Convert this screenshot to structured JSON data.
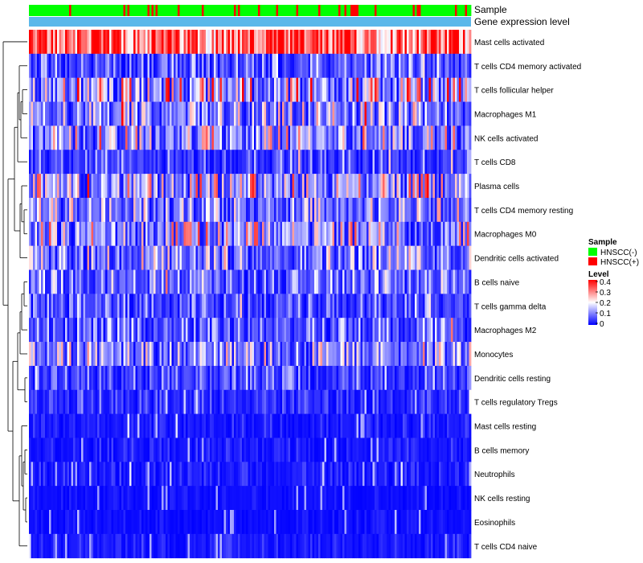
{
  "chart_data": {
    "type": "heatmap",
    "title": "",
    "annotation_tracks": [
      {
        "name": "Sample",
        "kind": "categorical"
      },
      {
        "name": "Gene expression level",
        "kind": "constant",
        "color": "#5bb8ea"
      }
    ],
    "rows": [
      "Mast cells activated",
      "T cells CD4 memory activated",
      "T cells follicular helper",
      "Macrophages M1",
      "NK cells activated",
      "T cells CD8",
      "Plasma cells",
      "T cells CD4 memory resting",
      "Macrophages M0",
      "Dendritic cells activated",
      "B cells naive",
      "T cells gamma delta",
      "Macrophages M2",
      "Monocytes",
      "Dendritic cells resting",
      "T cells regulatory  Tregs",
      "Mast cells resting",
      "B cells memory",
      "Neutrophils",
      "NK cells resting",
      "Eosinophils",
      "T cells CD4 naive"
    ],
    "row_mean_level": [
      0.32,
      0.06,
      0.13,
      0.09,
      0.11,
      0.05,
      0.12,
      0.09,
      0.11,
      0.09,
      0.07,
      0.05,
      0.06,
      0.09,
      0.05,
      0.03,
      0.02,
      0.02,
      0.02,
      0.01,
      0.01,
      0.02
    ],
    "n_samples": 220,
    "positive_fraction": 0.15,
    "color_scale": {
      "low": "#0000ff",
      "mid": "#ffffff",
      "high": "#ff0000",
      "domain": [
        0,
        0.2,
        0.4
      ]
    },
    "legend": {
      "position": "right",
      "sample_title": "Sample",
      "sample_entries": [
        {
          "label": "HNSCC(-)",
          "color": "#00ff00"
        },
        {
          "label": "HNSCC(+)",
          "color": "#ff0000"
        }
      ],
      "level_title": "Level",
      "level_ticks": [
        "0.4",
        "0.3",
        "0.2",
        "0.1",
        "0"
      ]
    }
  }
}
